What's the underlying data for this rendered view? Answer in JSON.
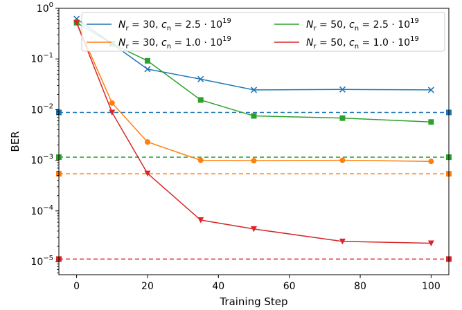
{
  "chart_data": {
    "type": "line",
    "xlabel": "Training Step",
    "ylabel": "BER",
    "y_scale": "log",
    "xlim": [
      -5,
      105
    ],
    "ylim": [
      5.5e-06,
      1
    ],
    "x_ticks": [
      {
        "value": 0,
        "label": "0"
      },
      {
        "value": 20,
        "label": "20"
      },
      {
        "value": 40,
        "label": "40"
      },
      {
        "value": 60,
        "label": "60"
      },
      {
        "value": 80,
        "label": "80"
      },
      {
        "value": 100,
        "label": "100"
      }
    ],
    "y_ticks": [
      {
        "value": 1,
        "base": "10",
        "exp": "0"
      },
      {
        "value": 0.1,
        "base": "10",
        "exp": "−1"
      },
      {
        "value": 0.01,
        "base": "10",
        "exp": "−2"
      },
      {
        "value": 0.001,
        "base": "10",
        "exp": "−3"
      },
      {
        "value": 0.0001,
        "base": "10",
        "exp": "−4"
      },
      {
        "value": 1e-05,
        "base": "10",
        "exp": "−5"
      }
    ],
    "grid": false,
    "legend_position": "top-right",
    "series": [
      {
        "name": "N_r = 30, c_n = 2.5·10^19",
        "label_parts": {
          "nr": "30",
          "cn": "2.5"
        },
        "color": "#1f77b4",
        "marker": "x",
        "x": [
          0,
          10,
          20,
          35,
          50,
          75,
          100
        ],
        "values": [
          0.62,
          0.2,
          0.063,
          0.04,
          0.0245,
          0.025,
          0.0245
        ],
        "baseline": 0.0088
      },
      {
        "name": "N_r = 30, c_n = 1.0·10^19",
        "label_parts": {
          "nr": "30",
          "cn": "1.0"
        },
        "color": "#ff7f0e",
        "marker": "circle",
        "x": [
          0,
          10,
          20,
          35,
          50,
          75,
          100
        ],
        "values": [
          0.52,
          0.0135,
          0.0023,
          0.001,
          0.00098,
          0.001,
          0.00095
        ],
        "baseline": 0.00054
      },
      {
        "name": "N_r = 50, c_n = 2.5·10^19",
        "label_parts": {
          "nr": "50",
          "cn": "2.5"
        },
        "color": "#2ca02c",
        "marker": "square",
        "x": [
          0,
          10,
          20,
          35,
          50,
          75,
          100
        ],
        "values": [
          0.52,
          0.2,
          0.092,
          0.0155,
          0.0075,
          0.0068,
          0.0057
        ],
        "baseline": 0.00115
      },
      {
        "name": "N_r = 50, c_n = 1.0·10^19",
        "label_parts": {
          "nr": "50",
          "cn": "1.0"
        },
        "color": "#d62728",
        "marker": "triangle-down",
        "x": [
          0,
          10,
          20,
          35,
          50,
          75,
          100
        ],
        "values": [
          0.52,
          0.0088,
          0.00055,
          6.6e-05,
          4.4e-05,
          2.5e-05,
          2.3e-05
        ],
        "baseline": 1.12e-05
      }
    ]
  }
}
